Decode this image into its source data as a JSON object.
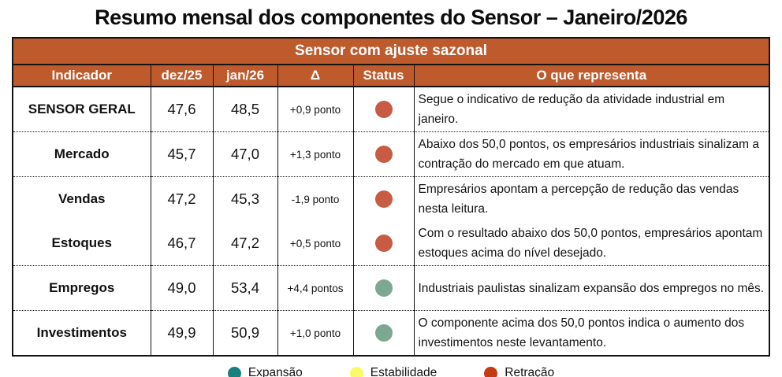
{
  "page_title": "Resumo mensal dos componentes do Sensor – Janeiro/2026",
  "chart_data": {
    "type": "table",
    "title": "Resumo mensal dos componentes do Sensor – Janeiro/2026",
    "group_header": "Sensor com ajuste sazonal",
    "columns": [
      "Indicador",
      "dez/25",
      "jan/26",
      "Δ",
      "Status",
      "O que representa"
    ],
    "rows": [
      {
        "indicador": "SENSOR GERAL",
        "dez25": "47,6",
        "jan26": "48,5",
        "delta": "+0,9 ponto",
        "status_label": "Retração",
        "status_color": "#C75B44",
        "descricao": "Segue o indicativo de redução da atividade industrial em janeiro."
      },
      {
        "indicador": "Mercado",
        "dez25": "45,7",
        "jan26": "47,0",
        "delta": "+1,3 ponto",
        "status_label": "Retração",
        "status_color": "#C75B44",
        "descricao": "Abaixo dos 50,0 pontos, os empresários industriais sinalizam a contração do mercado em que atuam."
      },
      {
        "indicador": "Vendas",
        "dez25": "47,2",
        "jan26": "45,3",
        "delta": "-1,9 ponto",
        "status_label": "Retração",
        "status_color": "#C75B44",
        "descricao": "Empresários apontam a percepção de redução das vendas nesta leitura."
      },
      {
        "indicador": "Estoques",
        "dez25": "46,7",
        "jan26": "47,2",
        "delta": "+0,5 ponto",
        "status_label": "Retração",
        "status_color": "#C75B44",
        "descricao": "Com o resultado abaixo dos 50,0 pontos, empresários apontam estoques acima do nível desejado."
      },
      {
        "indicador": "Empregos",
        "dez25": "49,0",
        "jan26": "53,4",
        "delta": "+4,4 pontos",
        "status_label": "Expansão",
        "status_color": "#7CA793",
        "descricao": "Industriais paulistas sinalizam expansão dos empregos no mês."
      },
      {
        "indicador": "Investimentos",
        "dez25": "49,9",
        "jan26": "50,9",
        "delta": "+1,0 ponto",
        "status_label": "Expansão",
        "status_color": "#7CA793",
        "descricao": "O componente acima dos 50,0 pontos indica o aumento dos investimentos neste levantamento."
      }
    ],
    "legend": [
      {
        "label": "Expansão",
        "color": "#1A807E"
      },
      {
        "label": "Estabilidade",
        "color": "#FAFA69"
      },
      {
        "label": "Retração",
        "color": "#C43A12"
      }
    ],
    "layout": {
      "header_bg": "#BF5A2C",
      "border_color": "#141414",
      "legend_position": "bottom"
    }
  }
}
